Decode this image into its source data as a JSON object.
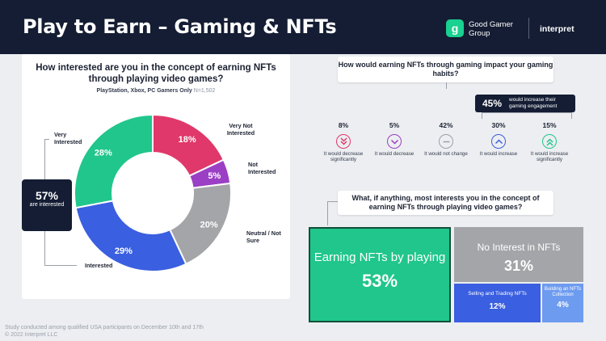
{
  "header": {
    "title": "Play to Earn – Gaming & NFTs",
    "brand_logo": "g",
    "brand_name": "Good Gamer Group",
    "partner": "interpret"
  },
  "left_panel": {
    "question": "How interested are you in the concept of earning NFTs through playing video games?",
    "subtitle": "PlayStation, Xbox, PC Gamers Only",
    "sample": "N=1,502",
    "callout_value": "57%",
    "callout_text": "are interested"
  },
  "right_panel": {
    "question": "How would earning NFTs through gaming impact your gaming habits?",
    "engagement_value": "45%",
    "engagement_text": "would increase their gaming engagement",
    "habits": [
      {
        "value": "8%",
        "label": "It would decrease significantly",
        "icon": "double-chevron-down-icon",
        "color": "#e0386a"
      },
      {
        "value": "5%",
        "label": "It would decrease",
        "icon": "chevron-down-icon",
        "color": "#9b3fc4"
      },
      {
        "value": "42%",
        "label": "It would not change",
        "icon": "minus-icon",
        "color": "#9aa0aa"
      },
      {
        "value": "30%",
        "label": "It would increase",
        "icon": "chevron-up-icon",
        "color": "#3a5fe0"
      },
      {
        "value": "15%",
        "label": "It would increase significantly",
        "icon": "double-chevron-up-icon",
        "color": "#20c68b"
      }
    ],
    "question2": "What, if anything, most interests you in the concept of earning NFTs through playing video games?"
  },
  "chart_data": [
    {
      "type": "pie",
      "variant": "donut",
      "categories": [
        "Very Not Interested",
        "Not Interested",
        "Neutral / Not Sure",
        "Interested",
        "Very Interested"
      ],
      "values": [
        18,
        5,
        20,
        29,
        28
      ],
      "value_labels": [
        "18%",
        "5%",
        "20%",
        "29%",
        "28%"
      ],
      "colors": [
        "#e0386a",
        "#9b3fc4",
        "#a3a5a8",
        "#3a5fe0",
        "#20c68b"
      ]
    },
    {
      "type": "heatmap",
      "variant": "treemap",
      "categories": [
        "Earning NFTs by playing",
        "No Interest in NFTs",
        "Selling and Trading NFTs",
        "Building an NFTs Collection"
      ],
      "values": [
        53,
        31,
        12,
        4
      ],
      "value_labels": [
        "53%",
        "31%",
        "12%",
        "4%"
      ],
      "colors": [
        "#20c68b",
        "#a3a5a8",
        "#3a5fe0",
        "#6d9bf0"
      ]
    }
  ],
  "footer": {
    "line1": "Study conducted among qualified USA participants on December 10th and 17th",
    "line2": "© 2022 Interpret LLC"
  }
}
